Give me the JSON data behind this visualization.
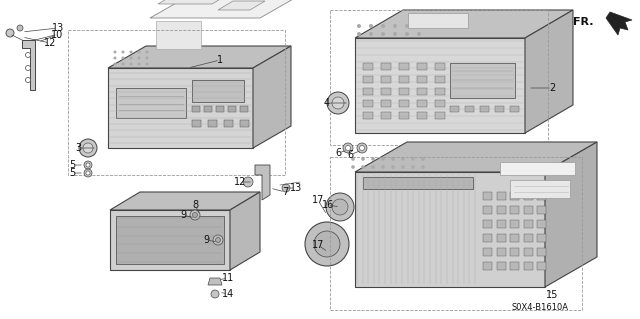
{
  "bg_color": "#ffffff",
  "diagram_code": "S0X4-B1610A",
  "fr_label": "FR.",
  "line_color": "#444444",
  "text_color": "#111111",
  "gray_dark": "#888888",
  "gray_mid": "#aaaaaa",
  "gray_light": "#cccccc",
  "gray_face": "#d8d8d8",
  "gray_top": "#bbbbbb",
  "gray_side": "#999999"
}
